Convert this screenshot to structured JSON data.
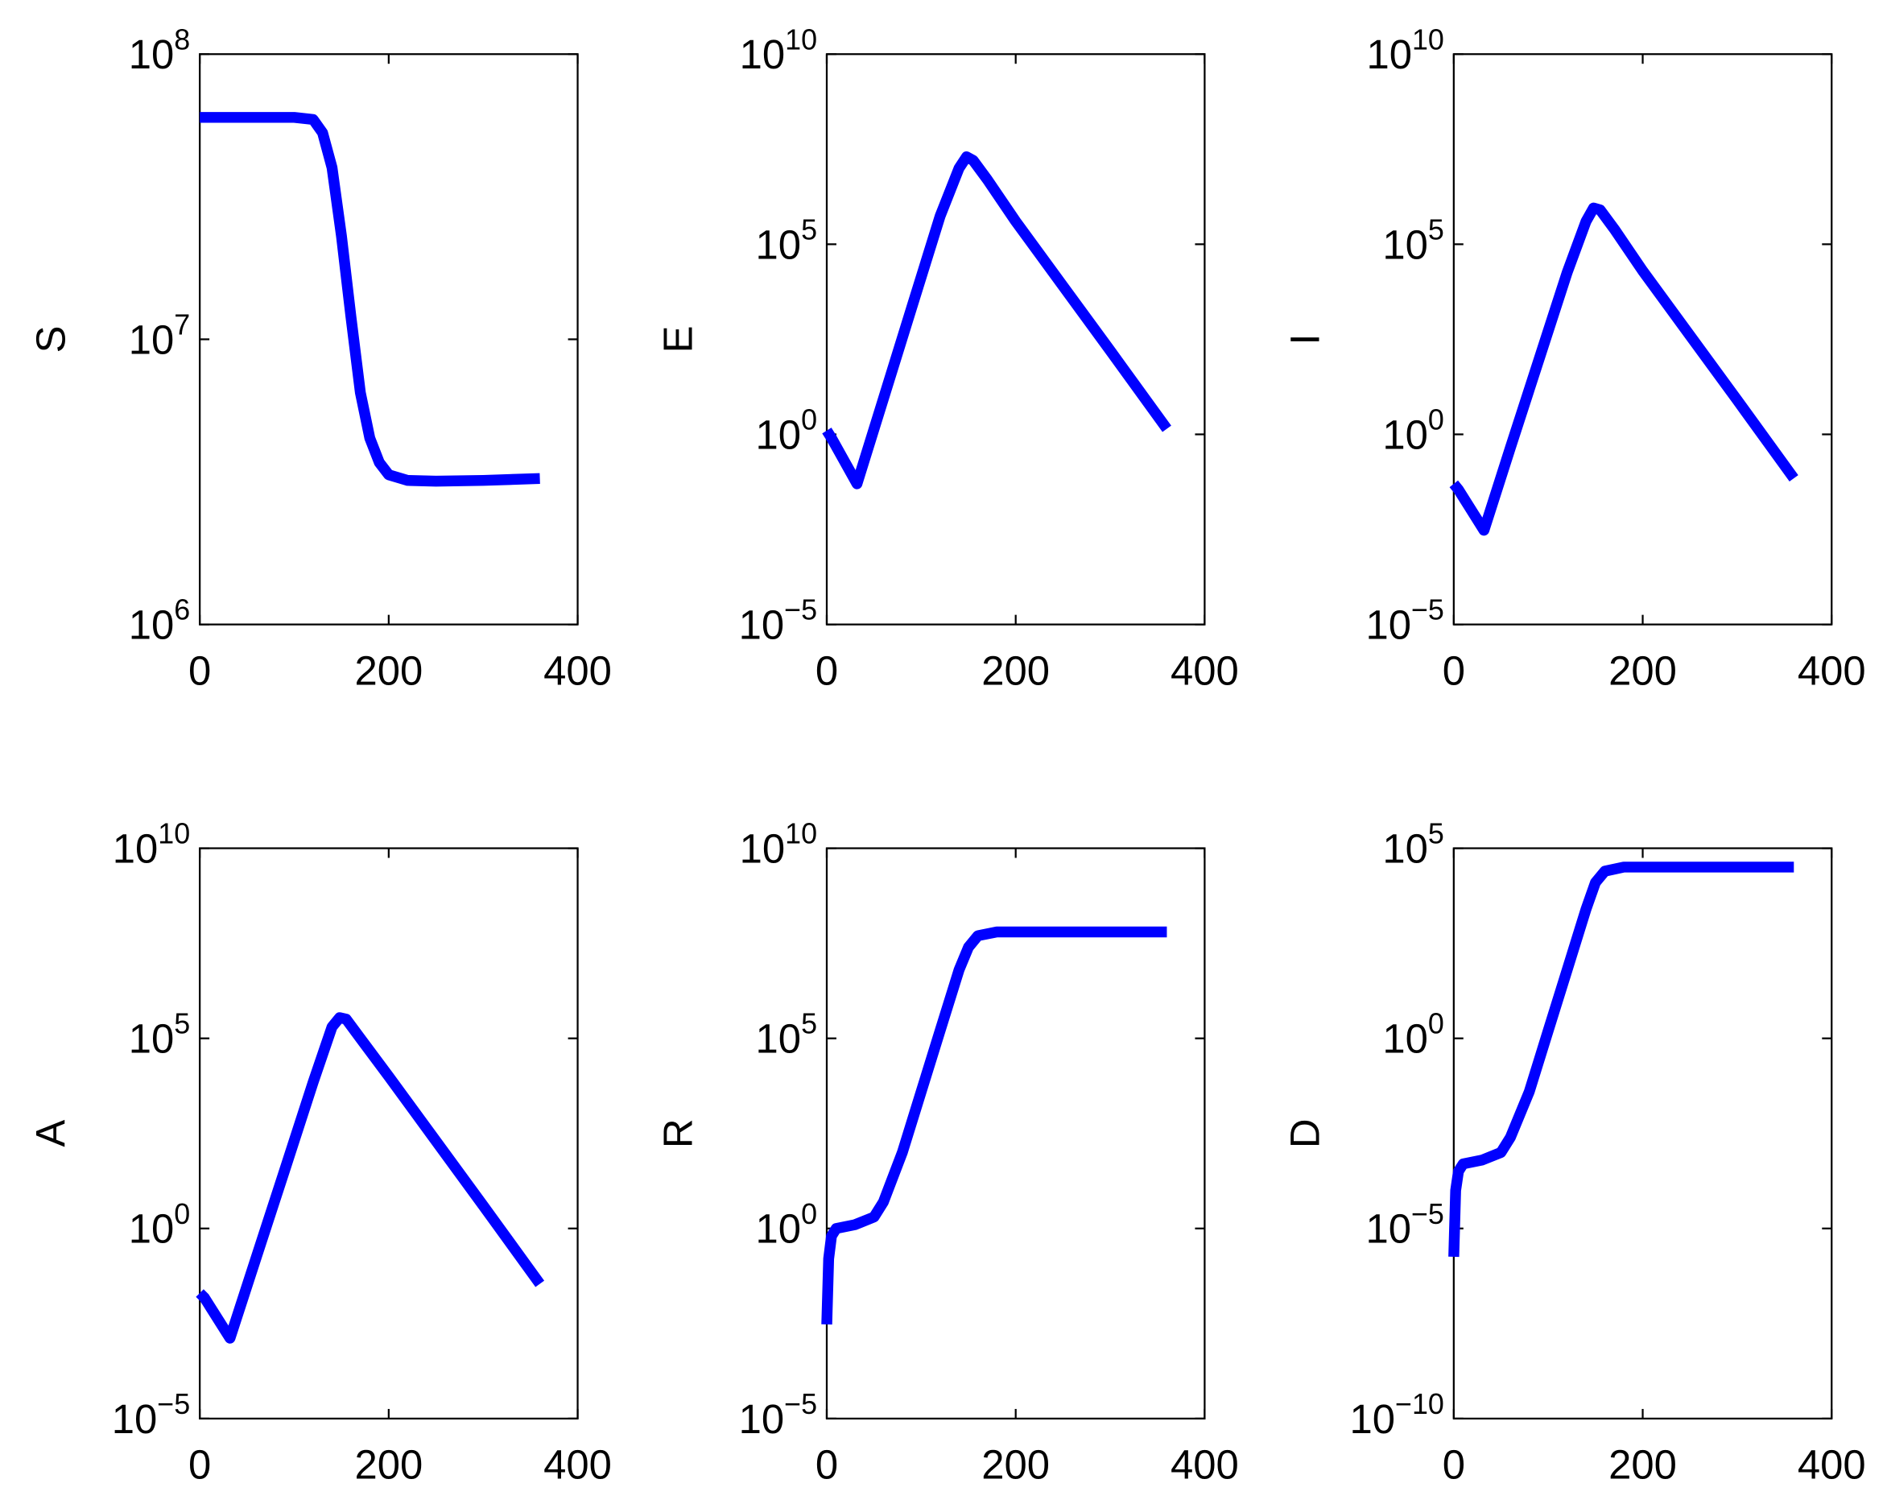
{
  "chart_data": [
    {
      "type": "line",
      "ylabel": "S",
      "color": "#0000ff",
      "yscale": "log",
      "x": [
        0,
        50,
        100,
        120,
        130,
        140,
        150,
        160,
        170,
        180,
        190,
        200,
        220,
        250,
        300,
        360
      ],
      "values": [
        60000000,
        60000000,
        60000000,
        59000000,
        53000000,
        40000000,
        23000000,
        12000000,
        6500000,
        4500000,
        3700000,
        3350000,
        3200000,
        3180000,
        3200000,
        3250000
      ],
      "xlim": [
        0,
        400
      ],
      "xticks": [
        0,
        200,
        400
      ],
      "ylim": [
        1000000,
        100000000
      ],
      "yticks": [
        {
          "value": 1000000,
          "label": "10^6"
        },
        {
          "value": 10000000,
          "label": "10^7"
        },
        {
          "value": 100000000,
          "label": "10^8"
        }
      ]
    },
    {
      "type": "line",
      "ylabel": "E",
      "color": "#0000ff",
      "yscale": "log",
      "x": [
        0,
        5,
        32,
        60,
        90,
        120,
        140,
        148,
        155,
        170,
        200,
        250,
        300,
        360
      ],
      "values": [
        1.26,
        0.8,
        0.05,
        8.7,
        2200,
        550000,
        10000000,
        20000000,
        16000000,
        5000000,
        400000,
        8000,
        160,
        1.4
      ],
      "xlim": [
        0,
        400
      ],
      "xticks": [
        0,
        200,
        400
      ],
      "ylim": [
        1e-05,
        10000000000
      ],
      "yticks": [
        {
          "value": 1e-05,
          "label": "10^-5"
        },
        {
          "value": 1,
          "label": "10^0"
        },
        {
          "value": 100000,
          "label": "10^5"
        },
        {
          "value": 10000000000,
          "label": "10^10"
        }
      ]
    },
    {
      "type": "line",
      "ylabel": "I",
      "color": "#0000ff",
      "yscale": "log",
      "x": [
        0,
        5,
        32,
        60,
        90,
        120,
        140,
        148,
        155,
        170,
        200,
        250,
        300,
        360
      ],
      "values": [
        0.05,
        0.035,
        0.003,
        0.45,
        90,
        18000,
        400000,
        900000,
        800000,
        250000,
        20000,
        400,
        8,
        0.07
      ],
      "xlim": [
        0,
        400
      ],
      "xticks": [
        0,
        200,
        400
      ],
      "ylim": [
        1e-05,
        10000000000
      ],
      "yticks": [
        {
          "value": 1e-05,
          "label": "10^-5"
        },
        {
          "value": 1,
          "label": "10^0"
        },
        {
          "value": 100000,
          "label": "10^5"
        },
        {
          "value": 10000000000,
          "label": "10^10"
        }
      ]
    },
    {
      "type": "line",
      "ylabel": "A",
      "color": "#0000ff",
      "yscale": "log",
      "x": [
        0,
        5,
        32,
        60,
        90,
        120,
        140,
        148,
        155,
        170,
        200,
        250,
        300,
        360
      ],
      "values": [
        0.02,
        0.015,
        0.0013,
        0.18,
        35,
        7000,
        200000,
        350000,
        320000,
        100000,
        10000,
        200,
        4,
        0.035
      ],
      "xlim": [
        0,
        400
      ],
      "xticks": [
        0,
        200,
        400
      ],
      "ylim": [
        1e-05,
        10000000000
      ],
      "yticks": [
        {
          "value": 1e-05,
          "label": "10^-5"
        },
        {
          "value": 1,
          "label": "10^0"
        },
        {
          "value": 100000,
          "label": "10^5"
        },
        {
          "value": 10000000000,
          "label": "10^10"
        }
      ]
    },
    {
      "type": "line",
      "ylabel": "R",
      "color": "#0000ff",
      "yscale": "log",
      "x": [
        0,
        2,
        5,
        10,
        30,
        50,
        60,
        80,
        100,
        120,
        140,
        150,
        160,
        180,
        250,
        360
      ],
      "values": [
        0.003,
        0.16,
        0.63,
        1,
        1.26,
        2,
        5,
        100,
        4000,
        160000,
        6300000,
        25000000,
        50000000,
        63000000,
        63000000,
        63000000
      ],
      "xlim": [
        0,
        400
      ],
      "xticks": [
        0,
        200,
        400
      ],
      "ylim": [
        1e-05,
        10000000000
      ],
      "yticks": [
        {
          "value": 1e-05,
          "label": "10^-5"
        },
        {
          "value": 1,
          "label": "10^0"
        },
        {
          "value": 100000,
          "label": "10^5"
        },
        {
          "value": 10000000000,
          "label": "10^10"
        }
      ]
    },
    {
      "type": "line",
      "ylabel": "D",
      "color": "#0000ff",
      "yscale": "log",
      "x": [
        0,
        2,
        5,
        10,
        30,
        50,
        60,
        80,
        100,
        120,
        140,
        150,
        160,
        180,
        250,
        360
      ],
      "values": [
        1.8e-06,
        0.0001,
        0.00032,
        0.0005,
        0.00063,
        0.001,
        0.0025,
        0.04,
        1.6,
        63,
        2500,
        12600,
        25000,
        32000,
        32000,
        32000
      ],
      "xlim": [
        0,
        400
      ],
      "xticks": [
        0,
        200,
        400
      ],
      "ylim": [
        1e-10,
        100000
      ],
      "yticks": [
        {
          "value": 1e-10,
          "label": "10^-10"
        },
        {
          "value": 1e-05,
          "label": "10^-5"
        },
        {
          "value": 1,
          "label": "10^0"
        },
        {
          "value": 100000,
          "label": "10^5"
        }
      ]
    }
  ]
}
